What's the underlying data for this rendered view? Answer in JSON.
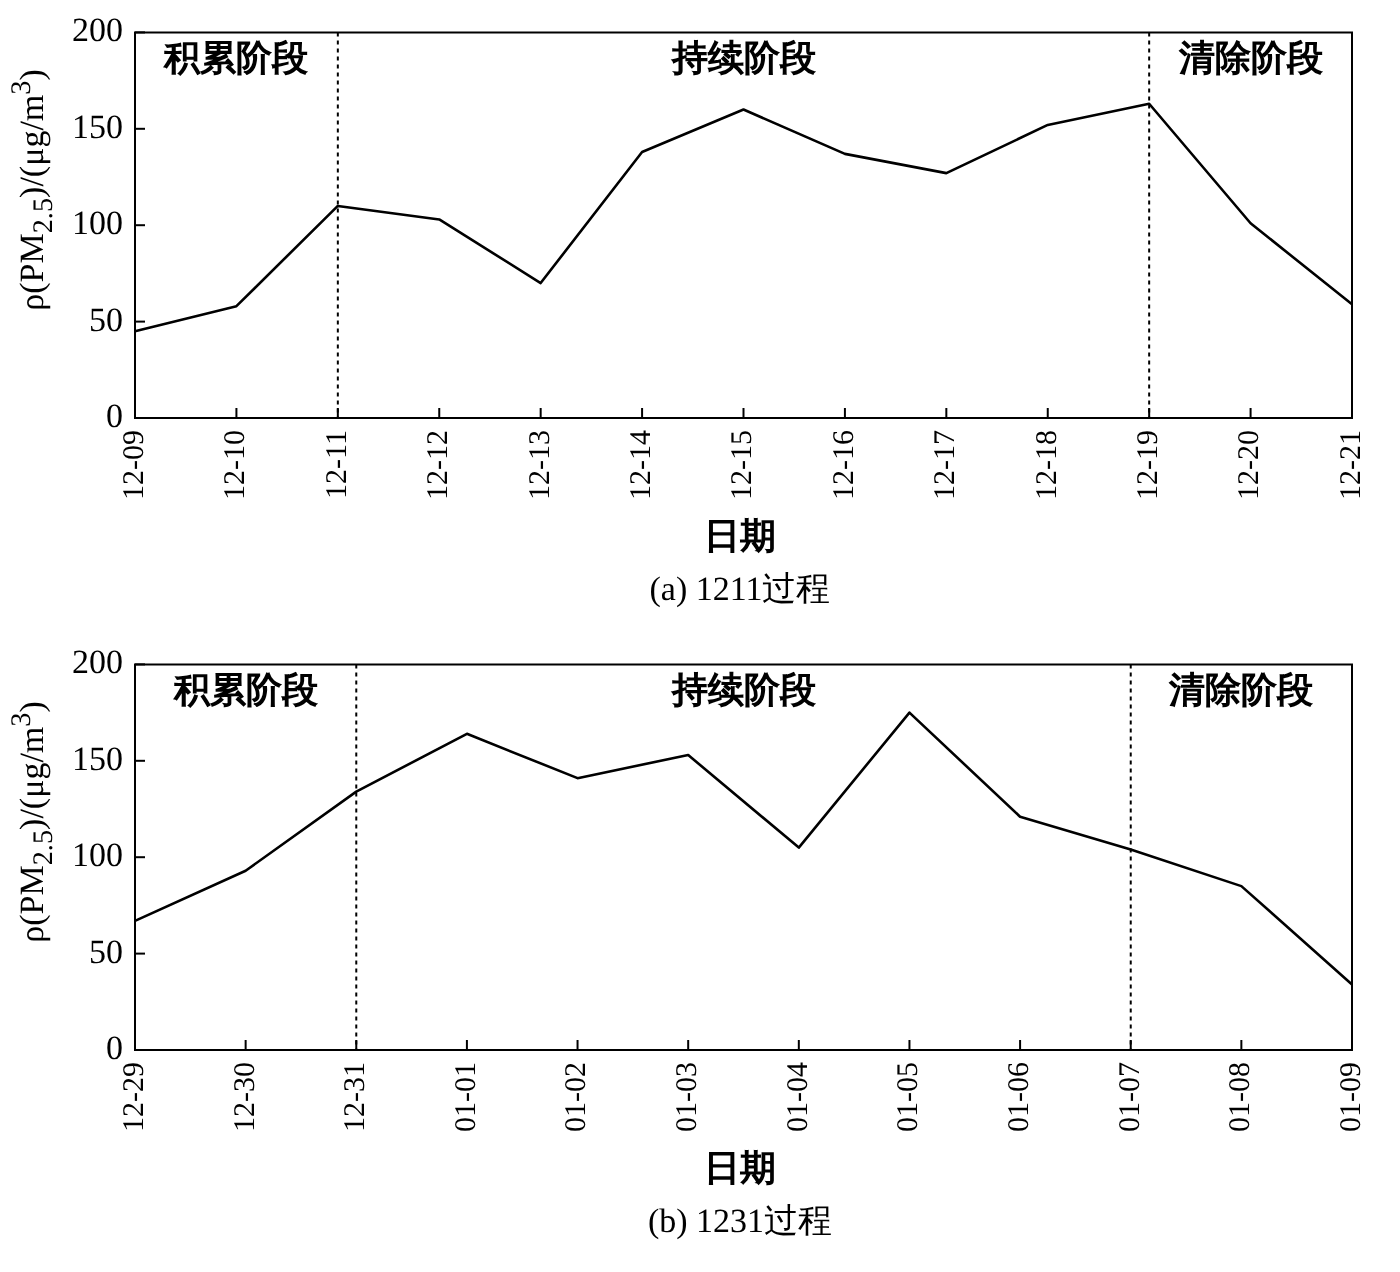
{
  "chart_data": [
    {
      "type": "line",
      "title": "(a) 1211过程",
      "xlabel": "日期",
      "ylabel": "ρ(PM$_{2.5}$)/(μg/m$^{3}$)",
      "categories": [
        "12-09",
        "12-10",
        "12-11",
        "12-12",
        "12-13",
        "12-14",
        "12-15",
        "12-16",
        "12-17",
        "12-18",
        "12-19",
        "12-20",
        "12-21"
      ],
      "series": [
        {
          "color": "#000000",
          "values": [
            45,
            58,
            110,
            103,
            70,
            138,
            160,
            137,
            127,
            152,
            163,
            101,
            59
          ]
        }
      ],
      "ylim": [
        0,
        200
      ],
      "yticks": [
        0,
        50,
        100,
        150,
        200
      ],
      "grid": false,
      "legend": false,
      "marker": "none",
      "line_style": "solid",
      "ref_lines": [
        {
          "axis": "x",
          "value": "12-11",
          "line_style": "dotted",
          "color": "#000000"
        },
        {
          "axis": "x",
          "value": "12-19",
          "line_style": "dotted",
          "color": "#000000"
        }
      ],
      "annotations": [
        "积累阶段",
        "持续阶段",
        "清除阶段"
      ]
    },
    {
      "type": "line",
      "title": "(b) 1231过程",
      "xlabel": "日期",
      "ylabel": "ρ(PM$_{2.5}$)/(μg/m$^{3}$)",
      "categories": [
        "12-29",
        "12-30",
        "12-31",
        "01-01",
        "01-02",
        "01-03",
        "01-04",
        "01-05",
        "01-06",
        "01-07",
        "01-08",
        "01-09"
      ],
      "series": [
        {
          "color": "#000000",
          "values": [
            67,
            93,
            134,
            164,
            141,
            153,
            105,
            175,
            121,
            104,
            85,
            34
          ]
        }
      ],
      "ylim": [
        0,
        200
      ],
      "yticks": [
        0,
        50,
        100,
        150,
        200
      ],
      "grid": false,
      "legend": false,
      "marker": "none",
      "line_style": "solid",
      "ref_lines": [
        {
          "axis": "x",
          "value": "12-31",
          "line_style": "dotted",
          "color": "#000000"
        },
        {
          "axis": "x",
          "value": "01-07",
          "line_style": "dotted",
          "color": "#000000"
        }
      ],
      "annotations": [
        "积累阶段",
        "持续阶段",
        "清除阶段"
      ]
    }
  ]
}
